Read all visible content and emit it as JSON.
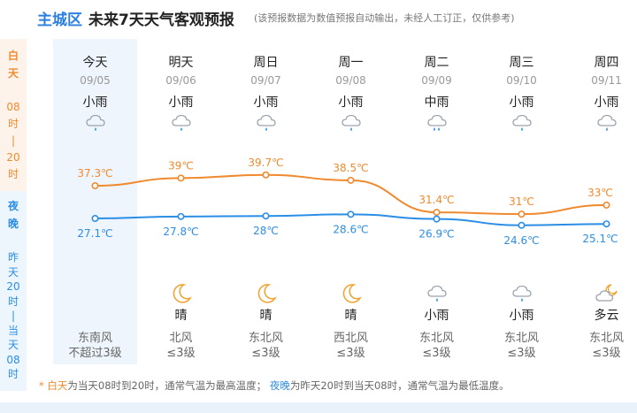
{
  "header": {
    "district": "主城区",
    "title": "未来7天天气客观预报",
    "disclaimer": "(该预报数据为数值预报自动输出，未经人工订正，仅供参考)"
  },
  "side": {
    "day_chars": [
      "白",
      "天"
    ],
    "day_time_chars": [
      "08",
      "时",
      "|",
      "20",
      "时"
    ],
    "night_chars": [
      "夜",
      "晚"
    ],
    "night_time_chars": [
      "昨",
      "天",
      "20",
      "时",
      "|",
      "当",
      "天",
      "08",
      "时"
    ]
  },
  "days": [
    {
      "weekday": "今天",
      "date": "09/05",
      "day_cond": "小雨",
      "day_icon": "light-rain",
      "high": "37.3℃",
      "low": "27.1℃",
      "night_icon": "",
      "night_cond": "",
      "wind_dir": "东南风",
      "wind_level": "不超过3级"
    },
    {
      "weekday": "明天",
      "date": "09/06",
      "day_cond": "小雨",
      "day_icon": "light-rain",
      "high": "39℃",
      "low": "27.8℃",
      "night_icon": "moon",
      "night_cond": "晴",
      "wind_dir": "北风",
      "wind_level": "≤3级"
    },
    {
      "weekday": "周日",
      "date": "09/07",
      "day_cond": "小雨",
      "day_icon": "light-rain",
      "high": "39.7℃",
      "low": "28℃",
      "night_icon": "moon",
      "night_cond": "晴",
      "wind_dir": "东北风",
      "wind_level": "≤3级"
    },
    {
      "weekday": "周一",
      "date": "09/08",
      "day_cond": "小雨",
      "day_icon": "light-rain",
      "high": "38.5℃",
      "low": "28.6℃",
      "night_icon": "moon",
      "night_cond": "晴",
      "wind_dir": "西北风",
      "wind_level": "≤3级"
    },
    {
      "weekday": "周二",
      "date": "09/09",
      "day_cond": "中雨",
      "day_icon": "moderate-rain",
      "high": "31.4℃",
      "low": "26.9℃",
      "night_icon": "light-rain",
      "night_cond": "小雨",
      "wind_dir": "东北风",
      "wind_level": "≤3级"
    },
    {
      "weekday": "周三",
      "date": "09/10",
      "day_cond": "小雨",
      "day_icon": "light-rain",
      "high": "31℃",
      "low": "24.6℃",
      "night_icon": "light-rain",
      "night_cond": "小雨",
      "wind_dir": "东北风",
      "wind_level": "≤3级"
    },
    {
      "weekday": "周四",
      "date": "09/11",
      "day_cond": "小雨",
      "day_icon": "light-rain",
      "high": "33℃",
      "low": "25.1℃",
      "night_icon": "partly-cloudy-night",
      "night_cond": "多云",
      "wind_dir": "东北风",
      "wind_level": "≤3级"
    }
  ],
  "chart_data": {
    "type": "line",
    "categories": [
      "09/05",
      "09/06",
      "09/07",
      "09/08",
      "09/09",
      "09/10",
      "09/11"
    ],
    "series": [
      {
        "values": [
          37.3,
          39,
          39.7,
          38.5,
          31.4,
          31,
          33
        ],
        "color": "#f08a2e"
      },
      {
        "values": [
          27.1,
          27.8,
          28,
          28.6,
          26.9,
          24.6,
          25.1
        ],
        "color": "#2b8ee6"
      }
    ]
  },
  "footnote": {
    "star": "*",
    "day_label": "白天",
    "day_text": "为当天08时到20时，通常气温为最高温度；",
    "night_label": "夜晚",
    "night_text": "为昨天20时到当天08时，通常气温为最低温度。"
  },
  "colors": {
    "accent": "#2b7fe0",
    "day": "#f08a2e",
    "night": "#2b8ee6"
  }
}
